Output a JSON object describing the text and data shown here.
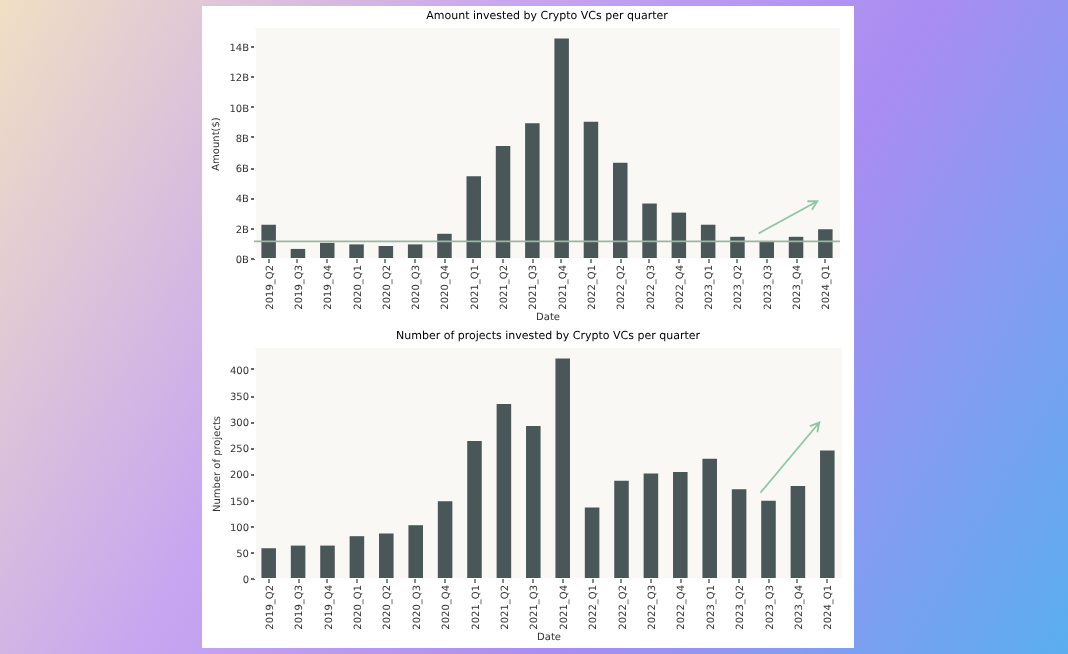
{
  "chart_data": [
    {
      "type": "bar",
      "title": "Amount invested by Crypto VCs per quarter",
      "xlabel": "Date",
      "ylabel": "Amount($)",
      "categories": [
        "2019_Q2",
        "2019_Q3",
        "2019_Q4",
        "2020_Q1",
        "2020_Q2",
        "2020_Q3",
        "2020_Q4",
        "2021_Q1",
        "2021_Q2",
        "2021_Q3",
        "2021_Q4",
        "2022_Q1",
        "2022_Q2",
        "2022_Q3",
        "2022_Q4",
        "2023_Q1",
        "2023_Q2",
        "2023_Q3",
        "2023_Q4",
        "2024_Q1"
      ],
      "values": [
        2.2,
        0.6,
        1.0,
        0.9,
        0.8,
        0.9,
        1.6,
        5.4,
        7.4,
        8.9,
        14.5,
        9.0,
        6.3,
        3.6,
        3.0,
        2.2,
        1.4,
        1.1,
        1.4,
        1.9
      ],
      "color": "#4a5759",
      "ylim": [
        0,
        15.2
      ],
      "yticks": [
        {
          "value": 0,
          "label": "0B"
        },
        {
          "value": 2,
          "label": "2B"
        },
        {
          "value": 4,
          "label": "4B"
        },
        {
          "value": 6,
          "label": "6B"
        },
        {
          "value": 8,
          "label": "8B"
        },
        {
          "value": 10,
          "label": "10B"
        },
        {
          "value": 12,
          "label": "12B"
        },
        {
          "value": 14,
          "label": "14B"
        }
      ],
      "ref_lines": [
        {
          "axis": "y",
          "value": 1.1,
          "color": "#9cb5a4"
        }
      ],
      "grid": false
    },
    {
      "type": "bar",
      "title": "Number of projects invested by Crypto VCs per quarter",
      "xlabel": "Date",
      "ylabel": "Number of projects",
      "categories": [
        "2019_Q2",
        "2019_Q3",
        "2019_Q4",
        "2020_Q1",
        "2020_Q2",
        "2020_Q3",
        "2020_Q4",
        "2021_Q1",
        "2021_Q2",
        "2021_Q3",
        "2021_Q4",
        "2022_Q1",
        "2022_Q2",
        "2022_Q3",
        "2022_Q4",
        "2023_Q1",
        "2023_Q2",
        "2023_Q3",
        "2023_Q4",
        "2024_Q1"
      ],
      "values": [
        57,
        62,
        62,
        80,
        85,
        101,
        147,
        262,
        333,
        291,
        420,
        135,
        186,
        200,
        203,
        228,
        170,
        148,
        176,
        244
      ],
      "color": "#4a5759",
      "ylim": [
        0,
        440
      ],
      "yticks": [
        0,
        50,
        100,
        150,
        200,
        250,
        300,
        350,
        400
      ],
      "grid": false
    }
  ]
}
